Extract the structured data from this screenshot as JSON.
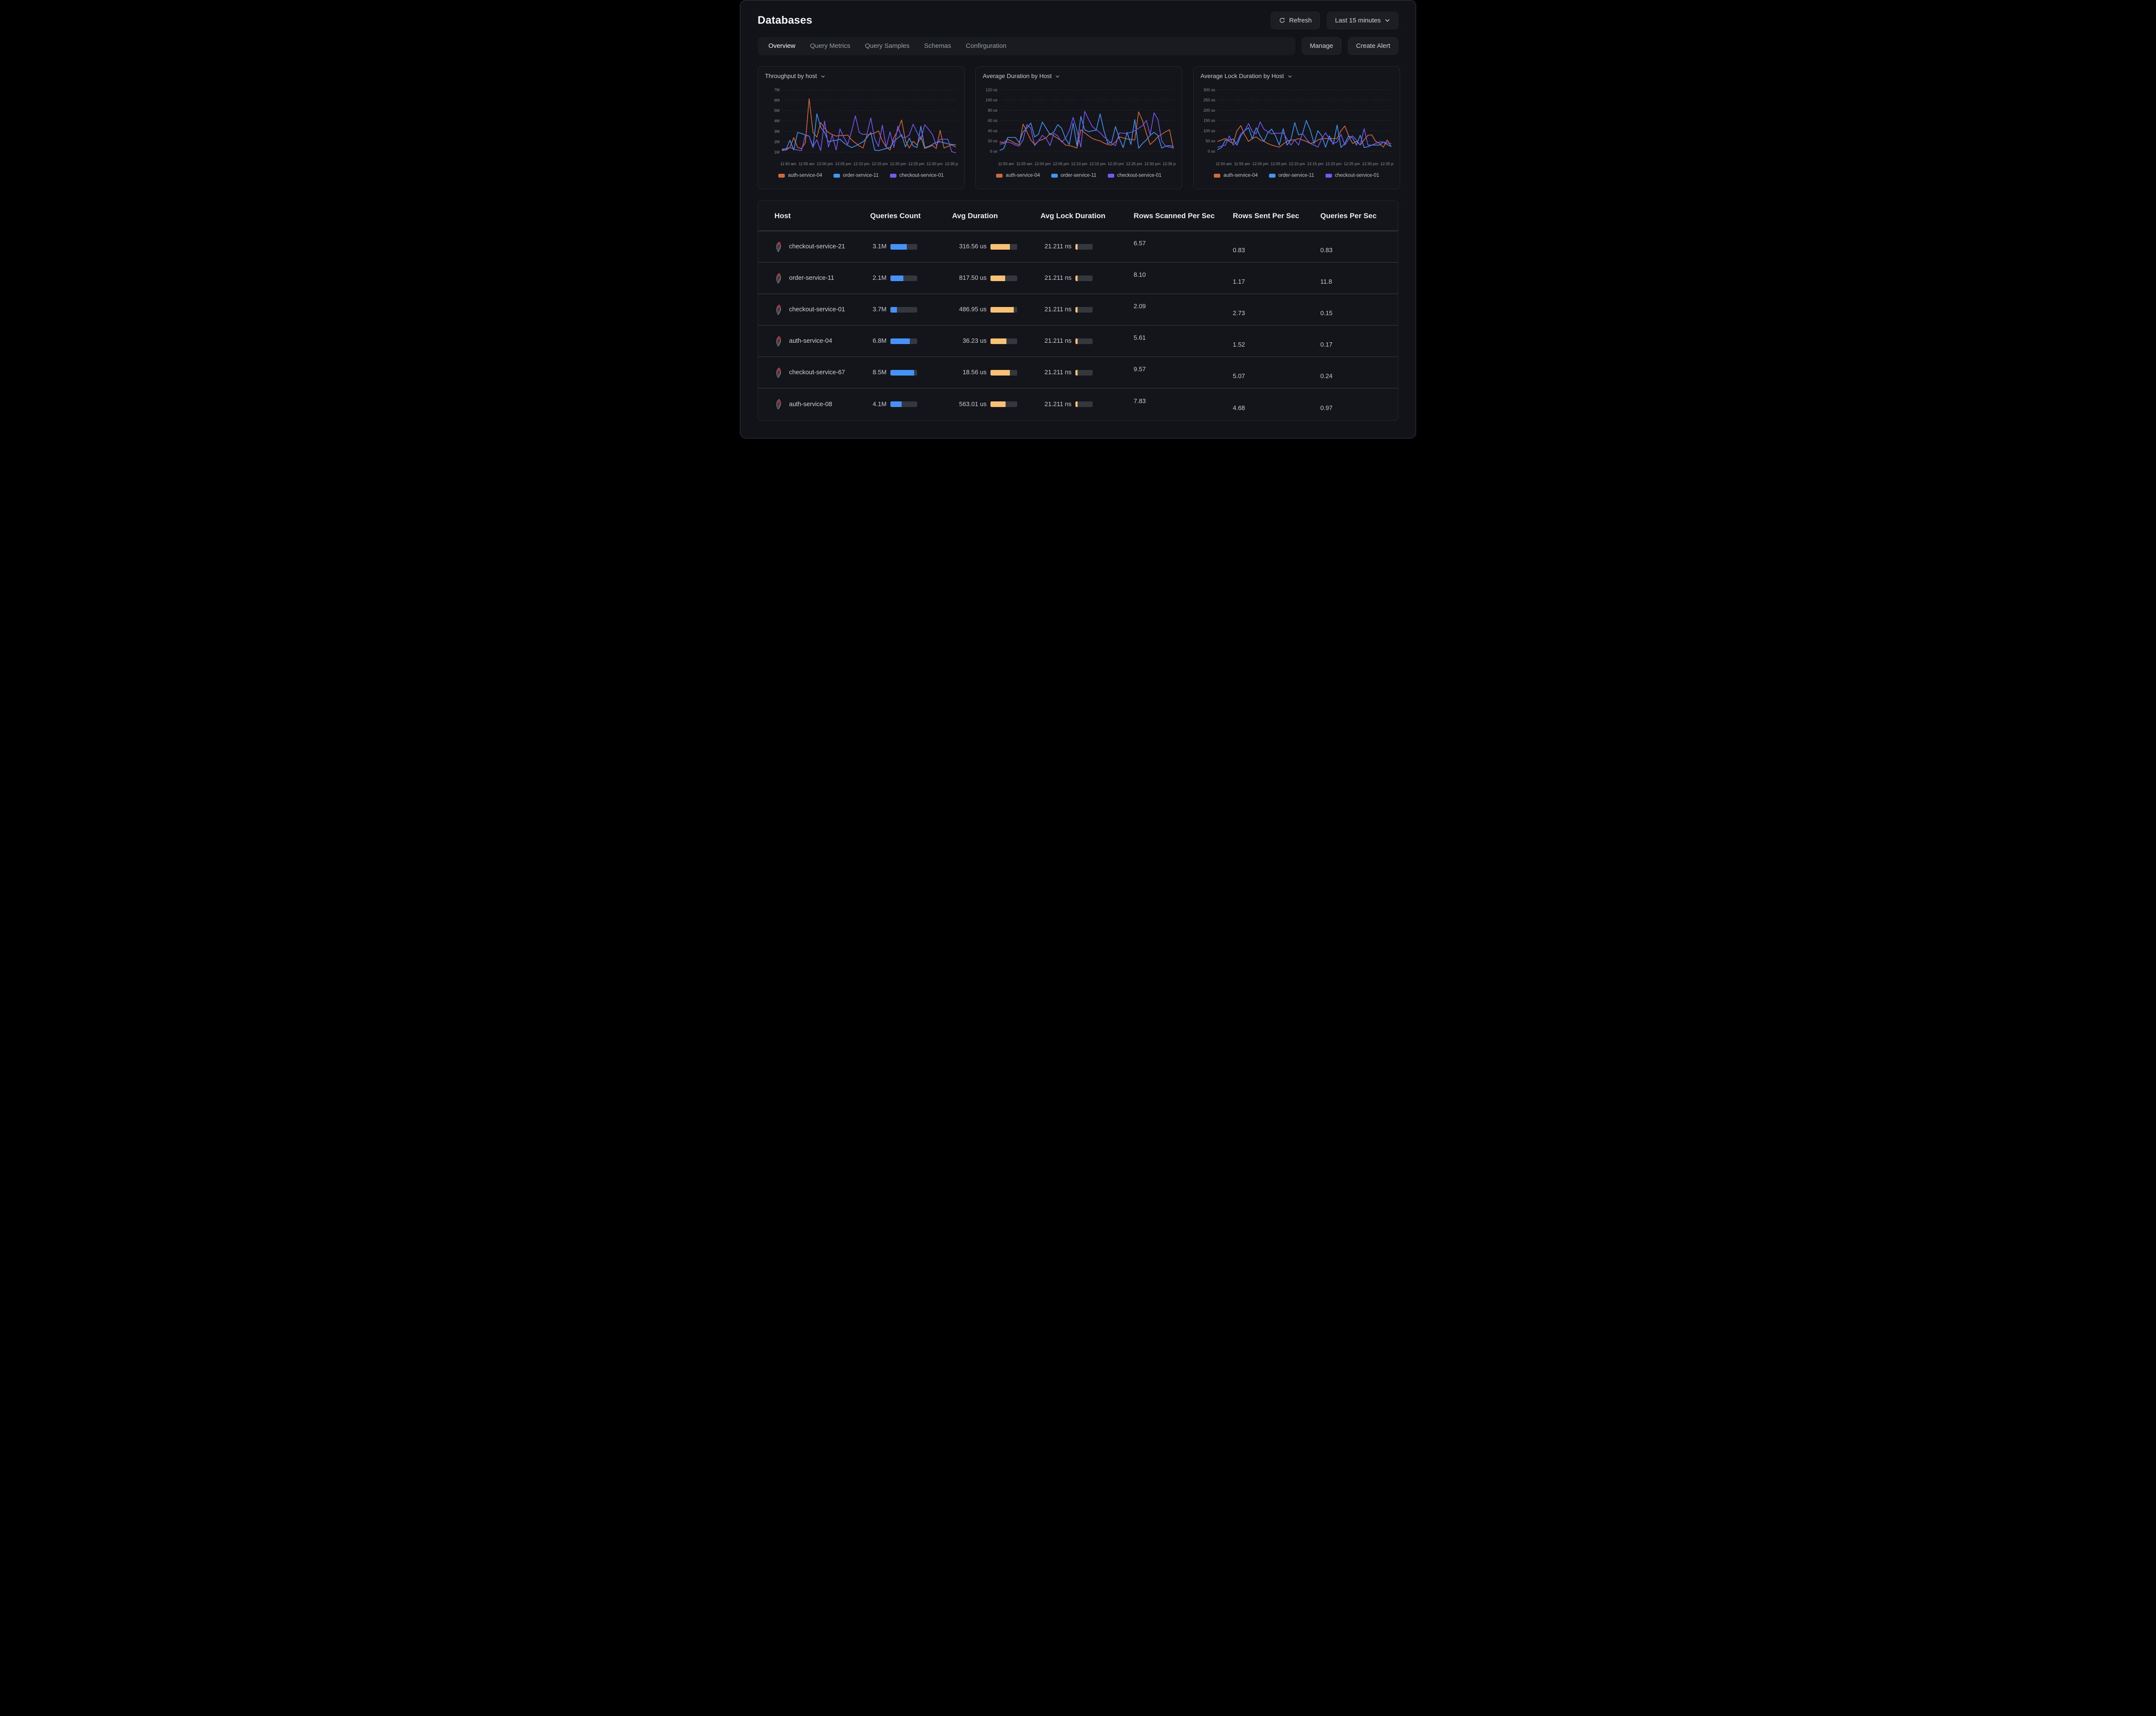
{
  "header": {
    "title": "Databases",
    "refresh": "Refresh",
    "time_range": "Last 15 minutes"
  },
  "toolbar": {
    "tabs": [
      "Overview",
      "Query Metrics",
      "Query Samples",
      "Schemas",
      "Confirguration"
    ],
    "active_tab": "Overview",
    "manage": "Manage",
    "create_alert": "Create Alert"
  },
  "palette": {
    "orange": "#d2693a",
    "blue": "#3f97f7",
    "purple": "#7a56f5",
    "bar_blue": "#4493f8",
    "bar_orange": "#f8c173",
    "bar_track": "#34373d",
    "grid": "#33363c",
    "axis_text": "#8d9198"
  },
  "chart_data": [
    {
      "type": "line",
      "title": "Throughput by host",
      "x_ticks": [
        "11:50 am",
        "11:55 am",
        "12:00 pm",
        "12:05 pm",
        "12:10 pm",
        "12:15 pm",
        "12:20 pm",
        "12:25 pm",
        "12:30 pm",
        "12:35 pm"
      ],
      "y_ticks": [
        "1M",
        "2M",
        "3M",
        "4M",
        "5M",
        "6M",
        "7M"
      ],
      "y_tick_values": [
        1,
        2,
        3,
        4,
        5,
        6,
        7
      ],
      "domain": [
        0.5,
        7.6
      ],
      "legend_position": "bottom",
      "series": [
        {
          "name": "auth-service-04",
          "color": "orange",
          "values": [
            1.25,
            1.2,
            1.45,
            2.4,
            1.45,
            1.35,
            1.9,
            6.15,
            2.9,
            2.45,
            3.85,
            3.3,
            2.9,
            2.7,
            2.55,
            2.6,
            2.6,
            2.65,
            2.2,
            1.9,
            1.6,
            1.4,
            2.65,
            2.75,
            2.85,
            3.05,
            2.1,
            1.5,
            1.2,
            2.4,
            3.1,
            4.1,
            2.1,
            1.4,
            2.05,
            1.7,
            2.5,
            1.35,
            1.5,
            1.65,
            1.35,
            3.1,
            1.4,
            1.55,
            1.7,
            1.5
          ]
        },
        {
          "name": "order-service-11",
          "color": "blue",
          "values": [
            1.15,
            1.25,
            2.15,
            1.2,
            2.9,
            2.8,
            2.65,
            2.55,
            1.45,
            4.7,
            3.4,
            2.9,
            2.0,
            2.1,
            2.15,
            2.25,
            1.9,
            1.65,
            1.45,
            1.6,
            1.8,
            2.0,
            2.4,
            2.9,
            1.2,
            1.15,
            1.25,
            1.35,
            1.45,
            2.05,
            2.35,
            2.7,
            1.5,
            2.35,
            1.6,
            1.45,
            3.5,
            1.45,
            1.55,
            1.75,
            1.95,
            2.0,
            1.9,
            1.8,
            1.75,
            1.7
          ]
        },
        {
          "name": "checkout-service-01",
          "color": "purple",
          "values": [
            1.3,
            1.35,
            1.45,
            1.3,
            1.2,
            1.15,
            2.6,
            2.55,
            1.55,
            2.2,
            1.15,
            4.0,
            1.5,
            2.65,
            1.2,
            3.25,
            2.4,
            1.75,
            3.0,
            4.5,
            2.9,
            2.7,
            2.75,
            4.3,
            2.3,
            1.55,
            3.6,
            1.5,
            2.95,
            1.45,
            3.5,
            2.45,
            2.4,
            2.65,
            3.7,
            2.9,
            2.2,
            3.65,
            3.2,
            2.7,
            1.65,
            2.25,
            2.25,
            2.25,
            1.05,
            0.95
          ]
        }
      ]
    },
    {
      "type": "line",
      "title": "Average Duration by Host",
      "x_ticks": [
        "11:50 am",
        "11:55 am",
        "12:00 pm",
        "12:05 pm",
        "12:10 pm",
        "12:15 pm",
        "12:20 pm",
        "12:25 pm",
        "12:30 pm",
        "12:35 pm"
      ],
      "y_ticks": [
        "0 us",
        "20 us",
        "40 us",
        "60 us",
        "80 us",
        "100 us",
        "120 us"
      ],
      "y_tick_values": [
        0,
        20,
        40,
        60,
        80,
        100,
        120
      ],
      "domain": [
        -12,
        132
      ],
      "legend_position": "bottom",
      "series": [
        {
          "name": "auth-service-04",
          "color": "orange",
          "values": [
            18,
            17,
            23,
            20,
            15,
            13,
            53,
            38,
            22,
            13,
            20,
            23,
            26,
            35,
            30,
            25,
            20,
            12,
            11,
            9,
            6,
            42,
            36,
            30,
            25,
            22,
            20,
            16,
            13,
            12,
            18,
            28,
            26,
            24,
            23,
            22,
            77,
            60,
            35,
            13,
            20,
            28,
            33,
            38,
            42,
            6
          ]
        },
        {
          "name": "order-service-11",
          "color": "blue",
          "values": [
            2,
            5,
            27,
            27,
            27,
            17,
            38,
            45,
            55,
            28,
            33,
            57,
            45,
            32,
            38,
            52,
            45,
            25,
            13,
            55,
            10,
            68,
            42,
            38,
            40,
            41,
            73,
            40,
            15,
            18,
            48,
            25,
            7,
            37,
            13,
            62,
            6,
            15,
            22,
            31,
            37,
            31,
            6,
            10,
            11,
            9
          ]
        },
        {
          "name": "checkout-service-01",
          "color": "purple",
          "values": [
            14,
            15,
            18,
            16,
            12,
            10,
            22,
            52,
            45,
            11,
            20,
            31,
            25,
            11,
            35,
            30,
            18,
            25,
            40,
            66,
            40,
            8,
            78,
            62,
            48,
            42,
            36,
            28,
            22,
            15,
            11,
            36,
            35,
            35,
            37,
            40,
            45,
            50,
            60,
            32,
            75,
            62,
            20,
            10,
            8,
            6
          ]
        }
      ]
    },
    {
      "type": "line",
      "title": "Average Lock Duration by Host",
      "x_ticks": [
        "11:50 am",
        "11:55 am",
        "12:00 pm",
        "12:05 pm",
        "12:10 pm",
        "12:15 pm",
        "12:20 pm",
        "12:25 pm",
        "12:30 pm",
        "12:35 pm"
      ],
      "y_ticks": [
        "0 us",
        "50 us",
        "100 us",
        "150 us",
        "200 us",
        "250 us",
        "300 us"
      ],
      "y_tick_values": [
        0,
        50,
        100,
        150,
        200,
        250,
        300
      ],
      "domain": [
        -30,
        330
      ],
      "legend_position": "bottom",
      "series": [
        {
          "name": "auth-service-04",
          "color": "orange",
          "values": [
            48,
            55,
            62,
            48,
            38,
            100,
            125,
            80,
            48,
            62,
            70,
            55,
            48,
            38,
            30,
            25,
            20,
            35,
            48,
            55,
            55,
            62,
            55,
            48,
            38,
            42,
            55,
            62,
            62,
            62,
            62,
            62,
            100,
            123,
            75,
            38,
            48,
            30,
            55,
            78,
            80,
            48,
            38,
            20,
            55,
            22
          ]
        },
        {
          "name": "order-service-11",
          "color": "blue",
          "values": [
            8,
            18,
            55,
            55,
            60,
            30,
            75,
            100,
            115,
            60,
            115,
            75,
            48,
            90,
            108,
            75,
            30,
            110,
            30,
            55,
            140,
            80,
            85,
            150,
            105,
            38,
            100,
            75,
            20,
            75,
            33,
            128,
            18,
            38,
            75,
            65,
            30,
            78,
            18,
            22,
            30,
            30,
            30,
            45,
            32,
            25
          ]
        },
        {
          "name": "checkout-service-01",
          "color": "purple",
          "values": [
            20,
            25,
            30,
            75,
            30,
            45,
            85,
            100,
            135,
            95,
            85,
            143,
            108,
            95,
            85,
            88,
            88,
            90,
            60,
            30,
            55,
            30,
            88,
            60,
            38,
            30,
            20,
            60,
            90,
            60,
            38,
            45,
            82,
            30,
            60,
            75,
            55,
            30,
            110,
            30,
            30,
            38,
            45,
            45,
            40,
            38
          ]
        }
      ]
    }
  ],
  "table": {
    "columns": [
      "Host",
      "Queries Count",
      "Avg Duration",
      "Avg Lock Duration",
      "Rows Scanned Per Sec",
      "Rows Sent Per Sec",
      "Queries Per Sec"
    ],
    "rows": [
      {
        "host": "checkout-service-21",
        "queries_count": "3.1M",
        "qc_fill": 0.62,
        "avg_duration": "316.56 us",
        "ad_fill": 0.72,
        "avg_lock": "21.211 ns",
        "al_fill": 0.13,
        "rows_scanned": "6.57",
        "rows_sent": "0.83",
        "queries_per_sec": "0.83"
      },
      {
        "host": "order-service-11",
        "queries_count": "2.1M",
        "qc_fill": 0.48,
        "avg_duration": "817.50 us",
        "ad_fill": 0.55,
        "avg_lock": "21.211 ns",
        "al_fill": 0.13,
        "rows_scanned": "8.10",
        "rows_sent": "1.17",
        "queries_per_sec": "11.8"
      },
      {
        "host": "checkout-service-01",
        "queries_count": "3.7M",
        "qc_fill": 0.24,
        "avg_duration": "486.95 us",
        "ad_fill": 0.87,
        "avg_lock": "21.211 ns",
        "al_fill": 0.13,
        "rows_scanned": "2.09",
        "rows_sent": "2.73",
        "queries_per_sec": "0.15"
      },
      {
        "host": "auth-service-04",
        "queries_count": "6.8M",
        "qc_fill": 0.72,
        "avg_duration": "36.23 us",
        "ad_fill": 0.6,
        "avg_lock": "21.211 ns",
        "al_fill": 0.13,
        "rows_scanned": "5.61",
        "rows_sent": "1.52",
        "queries_per_sec": "0.17"
      },
      {
        "host": "checkout-service-67",
        "queries_count": "8.5M",
        "qc_fill": 0.88,
        "avg_duration": "18.56 us",
        "ad_fill": 0.73,
        "avg_lock": "21.211 ns",
        "al_fill": 0.13,
        "rows_scanned": "9.57",
        "rows_sent": "5.07",
        "queries_per_sec": "0.24"
      },
      {
        "host": "auth-service-08",
        "queries_count": "4.1M",
        "qc_fill": 0.42,
        "avg_duration": "563.01 us",
        "ad_fill": 0.57,
        "avg_lock": "21.211 ns",
        "al_fill": 0.13,
        "rows_scanned": "7.83",
        "rows_sent": "4.68",
        "queries_per_sec": "0.97"
      }
    ]
  }
}
